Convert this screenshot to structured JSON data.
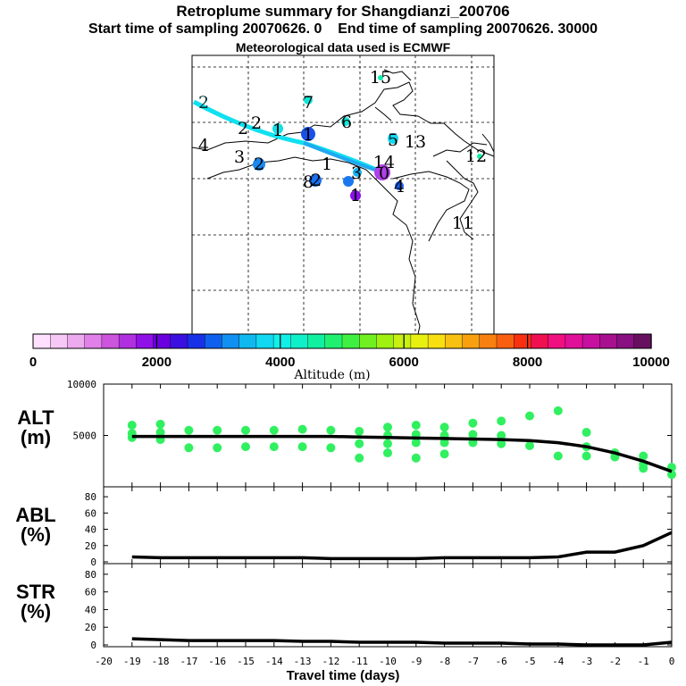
{
  "header": {
    "title": "Retroplume summary for Shangdianzi_200706",
    "start_label": "Start time of sampling 20070626.    0",
    "end_label": "End time of sampling 20070626. 30000",
    "met_label": "Meteorological data used is ECMWF"
  },
  "colorbar": {
    "title": "Altitude (m)",
    "ticks": [
      "0",
      "2000",
      "4000",
      "6000",
      "8000",
      "10000"
    ],
    "colors": [
      "#ffe0ff",
      "#f5c8f5",
      "#eeaaee",
      "#e080e8",
      "#cc55dd",
      "#b030e0",
      "#9010e8",
      "#6a00e0",
      "#3a10e0",
      "#1830e8",
      "#1060f0",
      "#1090f0",
      "#10b8f0",
      "#10d8f0",
      "#10f0e8",
      "#10f0c8",
      "#10f0a0",
      "#20f070",
      "#40f040",
      "#70f020",
      "#a0f010",
      "#c8f010",
      "#e8f010",
      "#f8e010",
      "#f8c010",
      "#f8a010",
      "#f88010",
      "#f86010",
      "#f83010",
      "#f01050",
      "#f01080",
      "#e01098",
      "#c810a0",
      "#a81090",
      "#881080",
      "#681060"
    ]
  },
  "map": {
    "trajectory_color": "#10e0f0",
    "cluster_labels": [
      {
        "text": "2",
        "col": "cyan"
      },
      {
        "text": "2",
        "col": "black"
      },
      {
        "text": "2",
        "col": "black"
      },
      {
        "text": "1",
        "col": "black"
      },
      {
        "text": "4",
        "col": "black"
      },
      {
        "text": "3",
        "col": "black"
      },
      {
        "text": "2",
        "col": "black"
      },
      {
        "text": "7",
        "col": "black"
      },
      {
        "text": "1",
        "col": "black"
      },
      {
        "text": "6",
        "col": "black"
      },
      {
        "text": "5",
        "col": "black"
      },
      {
        "text": "13",
        "col": "black"
      },
      {
        "text": "1",
        "col": "black"
      },
      {
        "text": "14",
        "col": "black"
      },
      {
        "text": "0",
        "col": "black"
      },
      {
        "text": "3",
        "col": "black"
      },
      {
        "text": "8",
        "col": "black"
      },
      {
        "text": "2",
        "col": "black"
      },
      {
        "text": "1",
        "col": "black"
      },
      {
        "text": "4",
        "col": "black"
      },
      {
        "text": "15",
        "col": "black"
      },
      {
        "text": "12",
        "col": "black"
      },
      {
        "text": "11",
        "col": "black"
      }
    ]
  },
  "panels": {
    "alt_label": "ALT\n(m)",
    "abl_label": "ABL\n(%)",
    "str_label": "STR\n(%)",
    "alt_line1": "ALT",
    "alt_line2": "(m)",
    "abl_line1": "ABL",
    "abl_line2": "(%)",
    "str_line1": "STR",
    "str_line2": "(%)"
  },
  "chart_data": [
    {
      "type": "line",
      "panel": "ALT",
      "xlabel": "Travel time (days)",
      "ylabel": "ALT (m)",
      "xlim": [
        -20,
        0
      ],
      "ylim": [
        0,
        10000
      ],
      "yticks": [
        5000,
        10000
      ],
      "x": [
        -19,
        -18,
        -17,
        -16,
        -15,
        -14,
        -13,
        -12,
        -11,
        -10,
        -9,
        -8,
        -7,
        -6,
        -5,
        -4,
        -3,
        -2,
        -1,
        0
      ],
      "values": [
        4900,
        4900,
        4900,
        4900,
        4900,
        4900,
        4900,
        4900,
        4850,
        4800,
        4750,
        4700,
        4650,
        4600,
        4500,
        4300,
        3900,
        3300,
        2500,
        1500
      ],
      "scatter": [
        {
          "x": -19,
          "y": 4800
        },
        {
          "x": -19,
          "y": 5200
        },
        {
          "x": -19,
          "y": 6000
        },
        {
          "x": -18,
          "y": 4600
        },
        {
          "x": -18,
          "y": 5300
        },
        {
          "x": -18,
          "y": 6100
        },
        {
          "x": -17,
          "y": 3800
        },
        {
          "x": -17,
          "y": 5500
        },
        {
          "x": -16,
          "y": 3800
        },
        {
          "x": -16,
          "y": 5500
        },
        {
          "x": -15,
          "y": 3900
        },
        {
          "x": -15,
          "y": 5500
        },
        {
          "x": -14,
          "y": 3900
        },
        {
          "x": -14,
          "y": 5500
        },
        {
          "x": -13,
          "y": 3900
        },
        {
          "x": -13,
          "y": 5600
        },
        {
          "x": -12,
          "y": 3800
        },
        {
          "x": -12,
          "y": 5500
        },
        {
          "x": -11,
          "y": 4200
        },
        {
          "x": -11,
          "y": 5400
        },
        {
          "x": -11,
          "y": 2800
        },
        {
          "x": -10,
          "y": 4200
        },
        {
          "x": -10,
          "y": 5000
        },
        {
          "x": -10,
          "y": 5800
        },
        {
          "x": -10,
          "y": 3300
        },
        {
          "x": -9,
          "y": 4300
        },
        {
          "x": -9,
          "y": 5100
        },
        {
          "x": -9,
          "y": 6000
        },
        {
          "x": -9,
          "y": 2800
        },
        {
          "x": -8,
          "y": 4300
        },
        {
          "x": -8,
          "y": 5000
        },
        {
          "x": -8,
          "y": 5800
        },
        {
          "x": -8,
          "y": 3200
        },
        {
          "x": -7,
          "y": 4300
        },
        {
          "x": -7,
          "y": 5100
        },
        {
          "x": -7,
          "y": 6200
        },
        {
          "x": -6,
          "y": 4200
        },
        {
          "x": -6,
          "y": 5000
        },
        {
          "x": -6,
          "y": 6400
        },
        {
          "x": -5,
          "y": 4000
        },
        {
          "x": -5,
          "y": 6900
        },
        {
          "x": -4,
          "y": 3000
        },
        {
          "x": -4,
          "y": 7400
        },
        {
          "x": -3,
          "y": 3000
        },
        {
          "x": -3,
          "y": 3900
        },
        {
          "x": -3,
          "y": 5300
        },
        {
          "x": -2,
          "y": 2900
        },
        {
          "x": -2,
          "y": 3300
        },
        {
          "x": -1,
          "y": 2200
        },
        {
          "x": -1,
          "y": 3000
        },
        {
          "x": -1,
          "y": 1800
        },
        {
          "x": 0,
          "y": 1200
        },
        {
          "x": 0,
          "y": 1900
        }
      ]
    },
    {
      "type": "line",
      "panel": "ABL",
      "xlabel": "Travel time (days)",
      "ylabel": "ABL (%)",
      "xlim": [
        -20,
        0
      ],
      "ylim": [
        0,
        90
      ],
      "yticks": [
        0,
        20,
        40,
        60,
        80
      ],
      "x": [
        -19,
        -18,
        -17,
        -16,
        -15,
        -14,
        -13,
        -12,
        -11,
        -10,
        -9,
        -8,
        -7,
        -6,
        -5,
        -4,
        -3,
        -2,
        -1,
        0
      ],
      "values": [
        6,
        5,
        5,
        5,
        5,
        5,
        5,
        4,
        4,
        4,
        4,
        5,
        5,
        5,
        5,
        6,
        12,
        12,
        20,
        36
      ]
    },
    {
      "type": "line",
      "panel": "STR",
      "xlabel": "Travel time (days)",
      "ylabel": "STR (%)",
      "xlim": [
        -20,
        0
      ],
      "ylim": [
        0,
        90
      ],
      "yticks": [
        0,
        20,
        40,
        60,
        80
      ],
      "x": [
        -19,
        -18,
        -17,
        -16,
        -15,
        -14,
        -13,
        -12,
        -11,
        -10,
        -9,
        -8,
        -7,
        -6,
        -5,
        -4,
        -3,
        -2,
        -1,
        0
      ],
      "values": [
        7,
        6,
        5,
        5,
        5,
        5,
        4,
        4,
        3,
        3,
        3,
        2,
        2,
        2,
        1,
        1,
        0,
        0,
        0,
        3
      ]
    }
  ],
  "xticks": [
    "-20",
    "-19",
    "-18",
    "-17",
    "-16",
    "-15",
    "-14",
    "-13",
    "-12",
    "-11",
    "-10",
    "-9",
    "-8",
    "-7",
    "-6",
    "-5",
    "-4",
    "-3",
    "-2",
    "-1",
    "0"
  ],
  "alt_ytick_labels": [
    "5000",
    "10000"
  ],
  "pct_ytick_labels": [
    "0",
    "20",
    "40",
    "60",
    "80"
  ],
  "xlabel": "Travel time (days)"
}
